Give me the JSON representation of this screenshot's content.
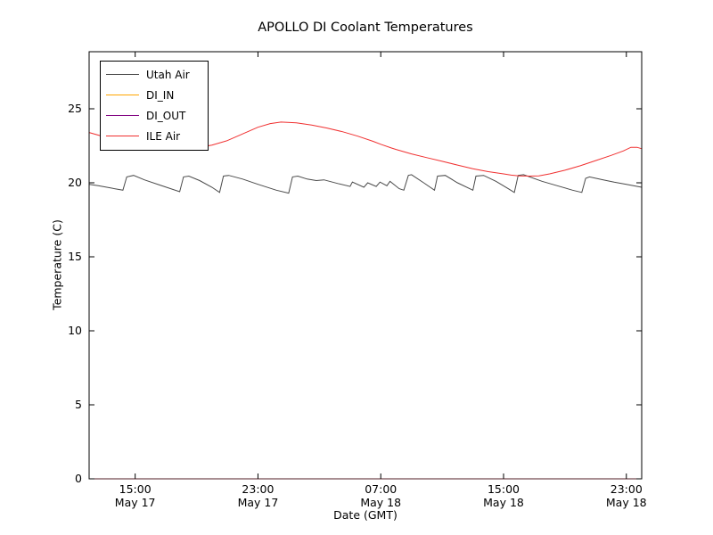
{
  "chart_data": {
    "type": "line",
    "title": "APOLLO DI Coolant Temperatures",
    "xlabel": "Date (GMT)",
    "ylabel": "Temperature (C)",
    "ylim": [
      0,
      28.9
    ],
    "xlim_hours_from_may17_1200": [
      0,
      36
    ],
    "grid": false,
    "legend_position": "upper left",
    "y_ticks": [
      0,
      5,
      10,
      15,
      20,
      25
    ],
    "x_ticks": [
      {
        "hour": 3,
        "time": "15:00",
        "date": "May 17"
      },
      {
        "hour": 11,
        "time": "23:00",
        "date": "May 17"
      },
      {
        "hour": 19,
        "time": "07:00",
        "date": "May 18"
      },
      {
        "hour": 27,
        "time": "15:00",
        "date": "May 18"
      },
      {
        "hour": 35,
        "time": "23:00",
        "date": "May 18"
      }
    ],
    "series": [
      {
        "name": "Utah Air",
        "color": "#4a4a4a",
        "points": [
          [
            0,
            19.9
          ],
          [
            0.6,
            19.8
          ],
          [
            1.4,
            19.65
          ],
          [
            2.2,
            19.5
          ],
          [
            2.45,
            20.4
          ],
          [
            2.9,
            20.5
          ],
          [
            3.6,
            20.2
          ],
          [
            4.6,
            19.85
          ],
          [
            5.9,
            19.4
          ],
          [
            6.15,
            20.4
          ],
          [
            6.5,
            20.45
          ],
          [
            7.2,
            20.15
          ],
          [
            8.0,
            19.7
          ],
          [
            8.5,
            19.35
          ],
          [
            8.75,
            20.45
          ],
          [
            9.1,
            20.5
          ],
          [
            10,
            20.25
          ],
          [
            11,
            19.9
          ],
          [
            12.2,
            19.5
          ],
          [
            13.0,
            19.3
          ],
          [
            13.25,
            20.4
          ],
          [
            13.6,
            20.45
          ],
          [
            14.2,
            20.25
          ],
          [
            14.8,
            20.15
          ],
          [
            15.3,
            20.2
          ],
          [
            16.2,
            19.95
          ],
          [
            17.0,
            19.75
          ],
          [
            17.15,
            20.05
          ],
          [
            17.9,
            19.7
          ],
          [
            18.15,
            20.0
          ],
          [
            18.7,
            19.75
          ],
          [
            18.95,
            20.05
          ],
          [
            19.4,
            19.8
          ],
          [
            19.6,
            20.1
          ],
          [
            20.2,
            19.6
          ],
          [
            20.5,
            19.5
          ],
          [
            20.8,
            20.5
          ],
          [
            21.0,
            20.55
          ],
          [
            21.8,
            20.0
          ],
          [
            22.5,
            19.5
          ],
          [
            22.7,
            20.45
          ],
          [
            23.2,
            20.5
          ],
          [
            24.0,
            20.0
          ],
          [
            25.0,
            19.5
          ],
          [
            25.2,
            20.45
          ],
          [
            25.7,
            20.5
          ],
          [
            26.5,
            20.1
          ],
          [
            27.3,
            19.6
          ],
          [
            27.7,
            19.35
          ],
          [
            27.95,
            20.5
          ],
          [
            28.3,
            20.55
          ],
          [
            29.5,
            20.1
          ],
          [
            30.5,
            19.8
          ],
          [
            31.5,
            19.5
          ],
          [
            32.1,
            19.35
          ],
          [
            32.35,
            20.3
          ],
          [
            32.6,
            20.4
          ],
          [
            33.5,
            20.2
          ],
          [
            34.2,
            20.05
          ],
          [
            35.0,
            19.9
          ],
          [
            36,
            19.7
          ]
        ]
      },
      {
        "name": "DI_IN",
        "color": "#ffa500",
        "points": [
          [
            0,
            0
          ],
          [
            36,
            0
          ]
        ]
      },
      {
        "name": "DI_OUT",
        "color": "#800080",
        "points": [
          [
            0,
            0
          ],
          [
            36,
            0
          ]
        ]
      },
      {
        "name": "ILE Air",
        "color": "#f03030",
        "points": [
          [
            0,
            23.4
          ],
          [
            1,
            23.1
          ],
          [
            2,
            22.8
          ],
          [
            3,
            22.55
          ],
          [
            4,
            22.4
          ],
          [
            5,
            22.33
          ],
          [
            6,
            22.3
          ],
          [
            7,
            22.37
          ],
          [
            8,
            22.55
          ],
          [
            9,
            22.85
          ],
          [
            10,
            23.3
          ],
          [
            11,
            23.75
          ],
          [
            11.8,
            24.0
          ],
          [
            12.5,
            24.1
          ],
          [
            13.5,
            24.05
          ],
          [
            14.5,
            23.9
          ],
          [
            15.5,
            23.7
          ],
          [
            16.5,
            23.45
          ],
          [
            17.5,
            23.15
          ],
          [
            18.5,
            22.8
          ],
          [
            19,
            22.6
          ],
          [
            19.7,
            22.35
          ],
          [
            20,
            22.25
          ],
          [
            21,
            21.95
          ],
          [
            22,
            21.7
          ],
          [
            23,
            21.45
          ],
          [
            24,
            21.2
          ],
          [
            25,
            20.95
          ],
          [
            26,
            20.75
          ],
          [
            27,
            20.6
          ],
          [
            27.5,
            20.52
          ],
          [
            28,
            20.47
          ],
          [
            28.7,
            20.45
          ],
          [
            29.3,
            20.47
          ],
          [
            30,
            20.6
          ],
          [
            31,
            20.85
          ],
          [
            32,
            21.15
          ],
          [
            33,
            21.5
          ],
          [
            34,
            21.85
          ],
          [
            34.8,
            22.15
          ],
          [
            35.3,
            22.4
          ],
          [
            35.7,
            22.4
          ],
          [
            36,
            22.3
          ]
        ]
      }
    ]
  }
}
